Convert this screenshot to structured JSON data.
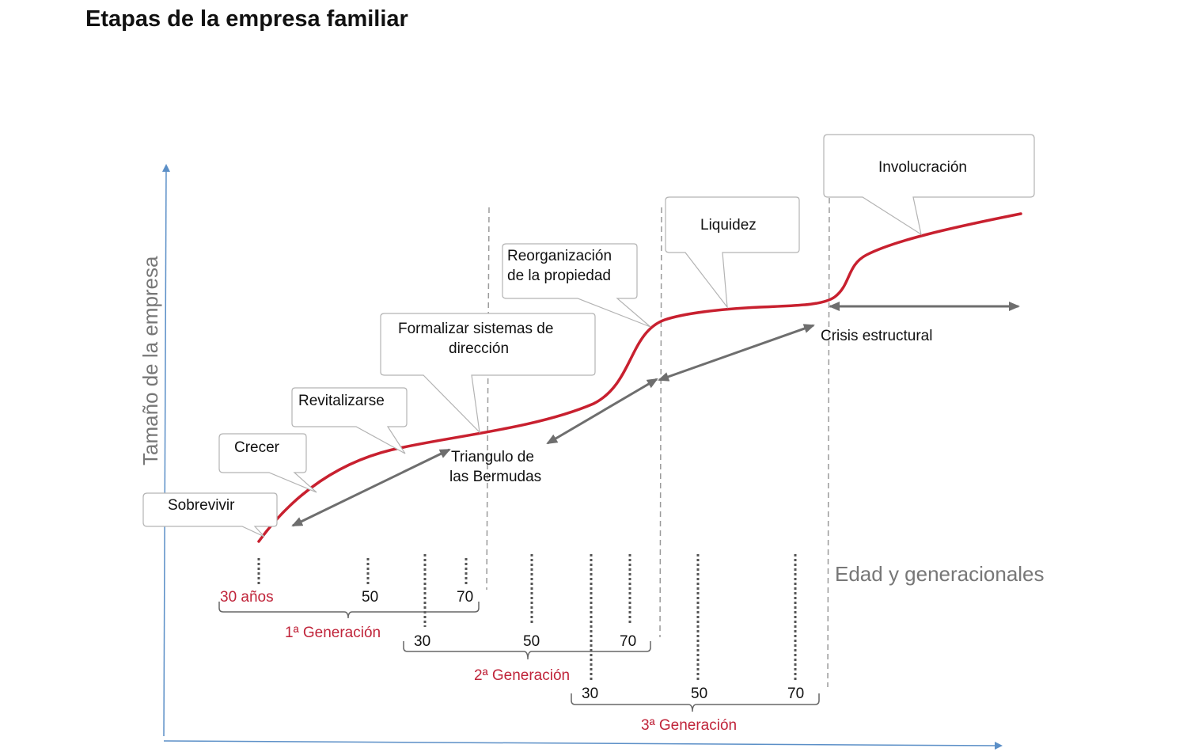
{
  "title": "Etapas de la empresa familiar",
  "axes": {
    "y_label": "Tamaño de la empresa",
    "x_label": "Edad y generacionales"
  },
  "callouts": {
    "sobrevivir": "Sobrevivir",
    "crecer": "Crecer",
    "revitalizarse": "Revitalizarse",
    "formalizar_1": "Formalizar sistemas de",
    "formalizar_2": "dirección",
    "reorganizacion_1": "Reorganización",
    "reorganizacion_2": "de la propiedad",
    "liquidez": "Liquidez",
    "involucracion": "Involucración"
  },
  "annotations": {
    "triangulo_1": "Triangulo de",
    "triangulo_2": "las Bermudas",
    "crisis": "Crisis estructural"
  },
  "generations": {
    "gen1": {
      "label": "1ª Generación",
      "start": "30 años",
      "mid": "50",
      "end": "70"
    },
    "gen2": {
      "label": "2ª Generación",
      "start": "30",
      "mid": "50",
      "end": "70"
    },
    "gen3": {
      "label": "3ª Generación",
      "start": "30",
      "mid": "50",
      "end": "70"
    }
  },
  "colors": {
    "curve": "#c8202f",
    "generation_label": "#c0243a",
    "axis": "#5b8fc7",
    "arrow": "#6e6e6e",
    "dashed": "#9a9a9a"
  }
}
